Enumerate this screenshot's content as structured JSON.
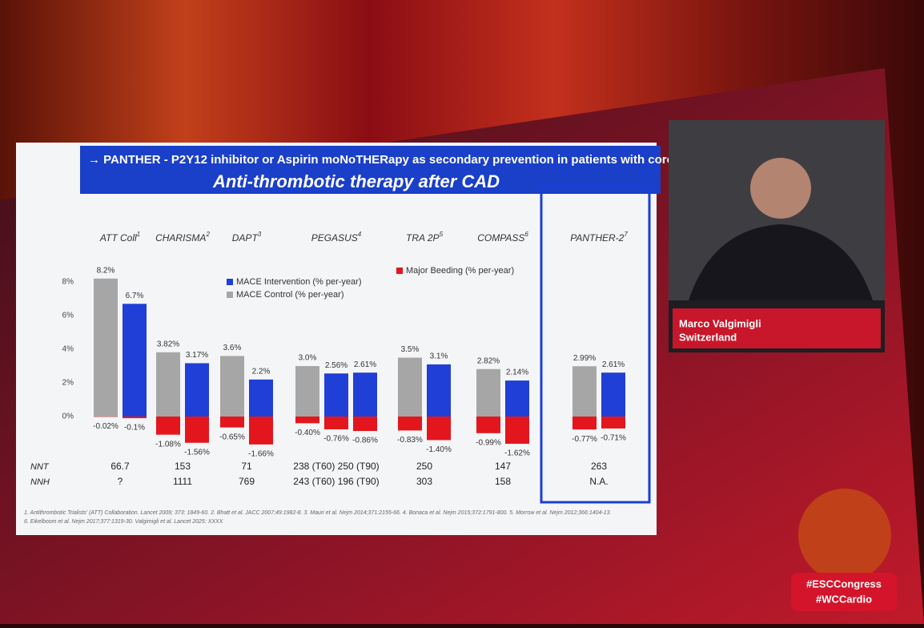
{
  "header": {
    "banner": "→ PANTHER - P2Y12 inhibitor or Aspirin moNoTHERapy as secondary prevention in patients with coron...",
    "speaker": "Marco Valgimigli",
    "country": "Switzerland",
    "tags": [
      "#ESCCongress",
      "#WCCardio"
    ]
  },
  "chart_data": {
    "type": "bar",
    "title": "Anti-thrombotic therapy after CAD",
    "ylim": [
      -2,
      9
    ],
    "yticks": [
      {
        "value": 0,
        "label": "0%"
      },
      {
        "value": 2,
        "label": "2%"
      },
      {
        "value": 4,
        "label": "4%"
      },
      {
        "value": 6,
        "label": "6%"
      },
      {
        "value": 8,
        "label": "8%"
      }
    ],
    "bleed_color": "#e3161e",
    "legend": [
      {
        "name": "MACE Intervention (% per-year)",
        "color": "#1f3fd6"
      },
      {
        "name": "MACE Control (% per-year)",
        "color": "#a6a6a6"
      },
      {
        "name": "Major Beeding (% per-year)",
        "color": "#e3161e"
      }
    ],
    "row_labels": [
      "NNT",
      "NNH"
    ],
    "groups": [
      {
        "label": "ATT Coll",
        "sup": "1",
        "nnt": "66.7",
        "nnh": "?",
        "bars": [
          {
            "color": "#a6a6a6",
            "mace": 8.2,
            "mace_label": "8.2%",
            "bleed": -0.02,
            "bleed_label": "-0.02%"
          },
          {
            "color": "#1f3fd6",
            "mace": 6.7,
            "mace_label": "6.7%",
            "bleed": -0.1,
            "bleed_label": "-0.1%"
          }
        ]
      },
      {
        "label": "CHARISMA",
        "sup": "2",
        "nnt": "153",
        "nnh": "1111",
        "bars": [
          {
            "color": "#a6a6a6",
            "mace": 3.82,
            "mace_label": "3.82%",
            "bleed": -1.08,
            "bleed_label": "-1.08%"
          },
          {
            "color": "#1f3fd6",
            "mace": 3.17,
            "mace_label": "3.17%",
            "bleed": -1.56,
            "bleed_label": "-1.56%"
          }
        ]
      },
      {
        "label": "DAPT",
        "sup": "3",
        "nnt": "71",
        "nnh": "769",
        "bars": [
          {
            "color": "#a6a6a6",
            "mace": 3.6,
            "mace_label": "3.6%",
            "bleed": -0.65,
            "bleed_label": "-0.65%"
          },
          {
            "color": "#1f3fd6",
            "mace": 2.2,
            "mace_label": "2.2%",
            "bleed": -1.66,
            "bleed_label": "-1.66%"
          }
        ]
      },
      {
        "label": "PEGASUS",
        "sup": "4",
        "nnt": "238 (T60) 250 (T90)",
        "nnh": "243 (T60) 196 (T90)",
        "bars": [
          {
            "color": "#a6a6a6",
            "mace": 3.0,
            "mace_label": "3.0%",
            "bleed": -0.4,
            "bleed_label": "-0.40%"
          },
          {
            "color": "#1f3fd6",
            "mace": 2.56,
            "mace_label": "2.56%",
            "bleed": -0.76,
            "bleed_label": "-0.76%"
          },
          {
            "color": "#1f3fd6",
            "mace": 2.61,
            "mace_label": "2.61%",
            "bleed": -0.86,
            "bleed_label": "-0.86%"
          }
        ]
      },
      {
        "label": "TRA 2P",
        "sup": "5",
        "nnt": "250",
        "nnh": "303",
        "bars": [
          {
            "color": "#a6a6a6",
            "mace": 3.5,
            "mace_label": "3.5%",
            "bleed": -0.83,
            "bleed_label": "-0.83%"
          },
          {
            "color": "#1f3fd6",
            "mace": 3.1,
            "mace_label": "3.1%",
            "bleed": -1.4,
            "bleed_label": "-1.40%"
          }
        ]
      },
      {
        "label": "COMPASS",
        "sup": "6",
        "nnt": "147",
        "nnh": "158",
        "bars": [
          {
            "color": "#a6a6a6",
            "mace": 2.82,
            "mace_label": "2.82%",
            "bleed": -0.99,
            "bleed_label": "-0.99%"
          },
          {
            "color": "#1f3fd6",
            "mace": 2.14,
            "mace_label": "2.14%",
            "bleed": -1.62,
            "bleed_label": "-1.62%"
          }
        ]
      },
      {
        "label": "PANTHER-2",
        "sup": "7",
        "nnt": "263",
        "nnh": "N.A.",
        "highlight": true,
        "bars": [
          {
            "color": "#a6a6a6",
            "mace": 2.99,
            "mace_label": "2.99%",
            "bleed": -0.77,
            "bleed_label": "-0.77%"
          },
          {
            "color": "#1f3fd6",
            "mace": 2.61,
            "mace_label": "2.61%",
            "bleed": -0.71,
            "bleed_label": "-0.71%"
          }
        ]
      }
    ],
    "footnotes": [
      "1. Antithrombotic Trialists' (ATT) Collaboration. Lancet 2009; 373: 1849-60. 2. Bhatt et al. JACC 2007;49:1982-8. 3. Mauri et al. Nejm 2014;371:2155-66. 4. Bonaca et al. Nejm 2015;372:1791-800. 5. Morrow et al. Nejm 2012;366:1404-13.",
      "6. Eikelboom et al. Nejm 2017;377:1319-30. Valgimigli et al. Lancet 2025: XXXX"
    ]
  }
}
